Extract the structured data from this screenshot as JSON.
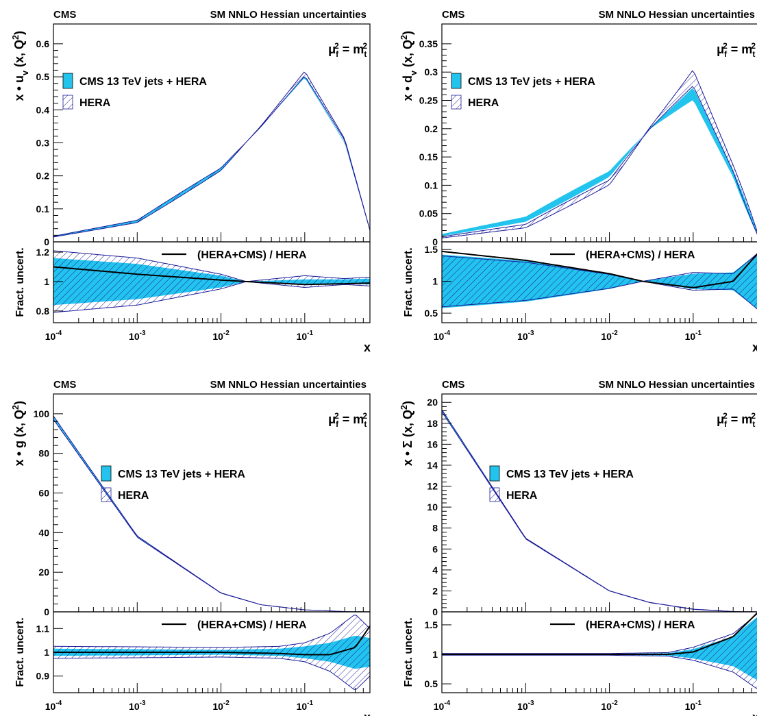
{
  "shared": {
    "experiment": "CMS",
    "subtitle": "SM NNLO Hessian uncertainties",
    "scale_label": "μ_f^2 = m_t^2",
    "legend_fit": "CMS 13 TeV jets + HERA",
    "legend_hera": "HERA",
    "ratio_legend": "(HERA+CMS) / HERA",
    "ratio_ylabel": "Fract. uncert.",
    "xlabel": "x",
    "colors": {
      "fit_band": "#22c4ee",
      "hera_hatch": "#1a1a99",
      "ratio_line": "#000000"
    }
  },
  "chart_data": [
    {
      "type": "area",
      "panel": "top-left",
      "ylabel": "x • u_v (x, Q^2)",
      "xscale": "log",
      "xlim": [
        0.0001,
        0.6
      ],
      "ylim": [
        0,
        0.66
      ],
      "yticks": [
        0,
        0.1,
        0.2,
        0.3,
        0.4,
        0.5,
        0.6
      ],
      "xticks": [
        "10^-4",
        "10^-3",
        "10^-2",
        "10^-1"
      ],
      "legend_placement": "left",
      "x": [
        0.0001,
        0.001,
        0.01,
        0.03,
        0.1,
        0.3,
        0.6
      ],
      "series": [
        {
          "name": "CMS 13 TeV jets + HERA",
          "central": [
            0.016,
            0.062,
            0.22,
            0.35,
            0.5,
            0.3,
            0.035
          ]
        },
        {
          "name": "HERA",
          "central": [
            0.016,
            0.062,
            0.22,
            0.35,
            0.51,
            0.31,
            0.035
          ]
        }
      ],
      "ratio": {
        "ylim": [
          0.72,
          1.27
        ],
        "yticks": [
          0.8,
          1,
          1.2
        ],
        "x": [
          0.0001,
          0.001,
          0.01,
          0.02,
          0.1,
          0.3,
          0.6
        ],
        "fit_band": [
          [
            0.84,
            1.16
          ],
          [
            0.88,
            1.12
          ],
          [
            0.96,
            1.04
          ],
          [
            1.0,
            1.0
          ],
          [
            0.985,
            1.015
          ],
          [
            0.985,
            1.015
          ],
          [
            0.98,
            1.02
          ]
        ],
        "hera_band": [
          [
            0.79,
            1.21
          ],
          [
            0.84,
            1.16
          ],
          [
            0.95,
            1.05
          ],
          [
            1.0,
            1.0
          ],
          [
            0.96,
            1.04
          ],
          [
            0.98,
            1.02
          ],
          [
            0.97,
            1.03
          ]
        ],
        "ratio_line": [
          1.1,
          1.05,
          1.01,
          1.0,
          0.98,
          0.985,
          0.99
        ]
      }
    },
    {
      "type": "area",
      "panel": "top-right",
      "ylabel": "x • d_v (x, Q^2)",
      "xscale": "log",
      "xlim": [
        0.0001,
        0.6
      ],
      "ylim": [
        0,
        0.385
      ],
      "yticks": [
        0,
        0.05,
        0.1,
        0.15,
        0.2,
        0.25,
        0.3,
        0.35
      ],
      "xticks": [
        "10^-4",
        "10^-3",
        "10^-2",
        "10^-1"
      ],
      "legend_placement": "left",
      "x": [
        0.0001,
        0.001,
        0.01,
        0.03,
        0.1,
        0.3,
        0.6
      ],
      "series": [
        {
          "name": "CMS 13 TeV jets + HERA",
          "central": [
            0.012,
            0.04,
            0.12,
            0.2,
            0.262,
            0.12,
            0.01
          ]
        },
        {
          "name": "HERA",
          "central": [
            0.008,
            0.028,
            0.105,
            0.2,
            0.29,
            0.13,
            0.01
          ]
        }
      ],
      "ratio": {
        "ylim": [
          0.35,
          1.62
        ],
        "yticks": [
          0.5,
          1,
          1.5
        ],
        "x": [
          0.0001,
          0.001,
          0.01,
          0.025,
          0.1,
          0.3,
          0.6
        ],
        "fit_band": [
          [
            0.58,
            1.42
          ],
          [
            0.68,
            1.32
          ],
          [
            0.88,
            1.12
          ],
          [
            1.0,
            1.0
          ],
          [
            0.88,
            1.12
          ],
          [
            0.86,
            1.14
          ],
          [
            0.55,
            1.45
          ]
        ],
        "hera_band": [
          [
            0.6,
            1.4
          ],
          [
            0.7,
            1.3
          ],
          [
            0.89,
            1.11
          ],
          [
            1.0,
            1.0
          ],
          [
            0.86,
            1.14
          ],
          [
            0.88,
            1.12
          ],
          [
            0.55,
            1.45
          ]
        ],
        "ratio_line": [
          1.47,
          1.33,
          1.12,
          1.0,
          0.9,
          1.0,
          1.45
        ]
      }
    },
    {
      "type": "area",
      "panel": "bottom-left",
      "ylabel": "x • g (x, Q^2)",
      "xscale": "log",
      "xlim": [
        0.0001,
        0.6
      ],
      "ylim": [
        0,
        110
      ],
      "yticks": [
        0,
        20,
        40,
        60,
        80,
        100
      ],
      "xticks": [
        "10^-4",
        "10^-3",
        "10^-2",
        "10^-1"
      ],
      "legend_placement": "center-left",
      "x": [
        0.0001,
        0.001,
        0.01,
        0.03,
        0.1,
        0.3,
        0.6
      ],
      "series": [
        {
          "name": "CMS 13 TeV jets + HERA",
          "central": [
            98,
            38,
            9.5,
            3.6,
            1.0,
            0.15,
            0.01
          ]
        },
        {
          "name": "HERA",
          "central": [
            98,
            38,
            9.5,
            3.6,
            1.0,
            0.15,
            0.01
          ]
        }
      ],
      "ratio": {
        "ylim": [
          0.83,
          1.17
        ],
        "yticks": [
          0.9,
          1,
          1.1
        ],
        "x": [
          0.0001,
          0.001,
          0.01,
          0.05,
          0.1,
          0.2,
          0.4,
          0.6
        ],
        "fit_band": [
          [
            0.985,
            1.015
          ],
          [
            0.987,
            1.013
          ],
          [
            0.99,
            1.01
          ],
          [
            0.985,
            1.015
          ],
          [
            0.975,
            1.025
          ],
          [
            0.96,
            1.04
          ],
          [
            0.93,
            1.07
          ],
          [
            0.94,
            1.06
          ]
        ],
        "hera_band": [
          [
            0.975,
            1.025
          ],
          [
            0.977,
            1.023
          ],
          [
            0.98,
            1.02
          ],
          [
            0.975,
            1.025
          ],
          [
            0.96,
            1.04
          ],
          [
            0.92,
            1.08
          ],
          [
            0.84,
            1.16
          ],
          [
            0.9,
            1.1
          ]
        ],
        "ratio_line": [
          1.0,
          1.0,
          1.0,
          0.995,
          0.99,
          0.99,
          1.02,
          1.11
        ]
      }
    },
    {
      "type": "area",
      "panel": "bottom-right",
      "ylabel": "x • Σ (x, Q^2)",
      "xscale": "log",
      "xlim": [
        0.0001,
        0.6
      ],
      "ylim": [
        0,
        20.8
      ],
      "yticks": [
        0,
        2,
        4,
        6,
        8,
        10,
        12,
        14,
        16,
        18,
        20
      ],
      "xticks": [
        "10^-4",
        "10^-3",
        "10^-2",
        "10^-1"
      ],
      "legend_placement": "center-left",
      "x": [
        0.0001,
        0.001,
        0.01,
        0.03,
        0.1,
        0.3,
        0.6
      ],
      "series": [
        {
          "name": "CMS 13 TeV jets + HERA",
          "central": [
            19.2,
            7.0,
            2.0,
            0.9,
            0.25,
            0.03,
            0.002
          ]
        },
        {
          "name": "HERA",
          "central": [
            19.2,
            7.0,
            2.0,
            0.9,
            0.25,
            0.03,
            0.002
          ]
        }
      ],
      "ratio": {
        "ylim": [
          0.35,
          1.72
        ],
        "yticks": [
          0.5,
          1,
          1.5
        ],
        "x": [
          0.0001,
          0.001,
          0.01,
          0.05,
          0.1,
          0.3,
          0.6
        ],
        "fit_band": [
          [
            0.99,
            1.01
          ],
          [
            0.99,
            1.01
          ],
          [
            0.99,
            1.01
          ],
          [
            0.98,
            1.02
          ],
          [
            0.93,
            1.09
          ],
          [
            0.8,
            1.3
          ],
          [
            0.55,
            1.65
          ]
        ],
        "hera_band": [
          [
            0.985,
            1.015
          ],
          [
            0.985,
            1.015
          ],
          [
            0.985,
            1.015
          ],
          [
            0.97,
            1.03
          ],
          [
            0.9,
            1.12
          ],
          [
            0.7,
            1.35
          ],
          [
            0.4,
            1.7
          ]
        ],
        "ratio_line": [
          1.0,
          1.0,
          1.0,
          1.0,
          1.04,
          1.3,
          1.72
        ]
      }
    }
  ]
}
